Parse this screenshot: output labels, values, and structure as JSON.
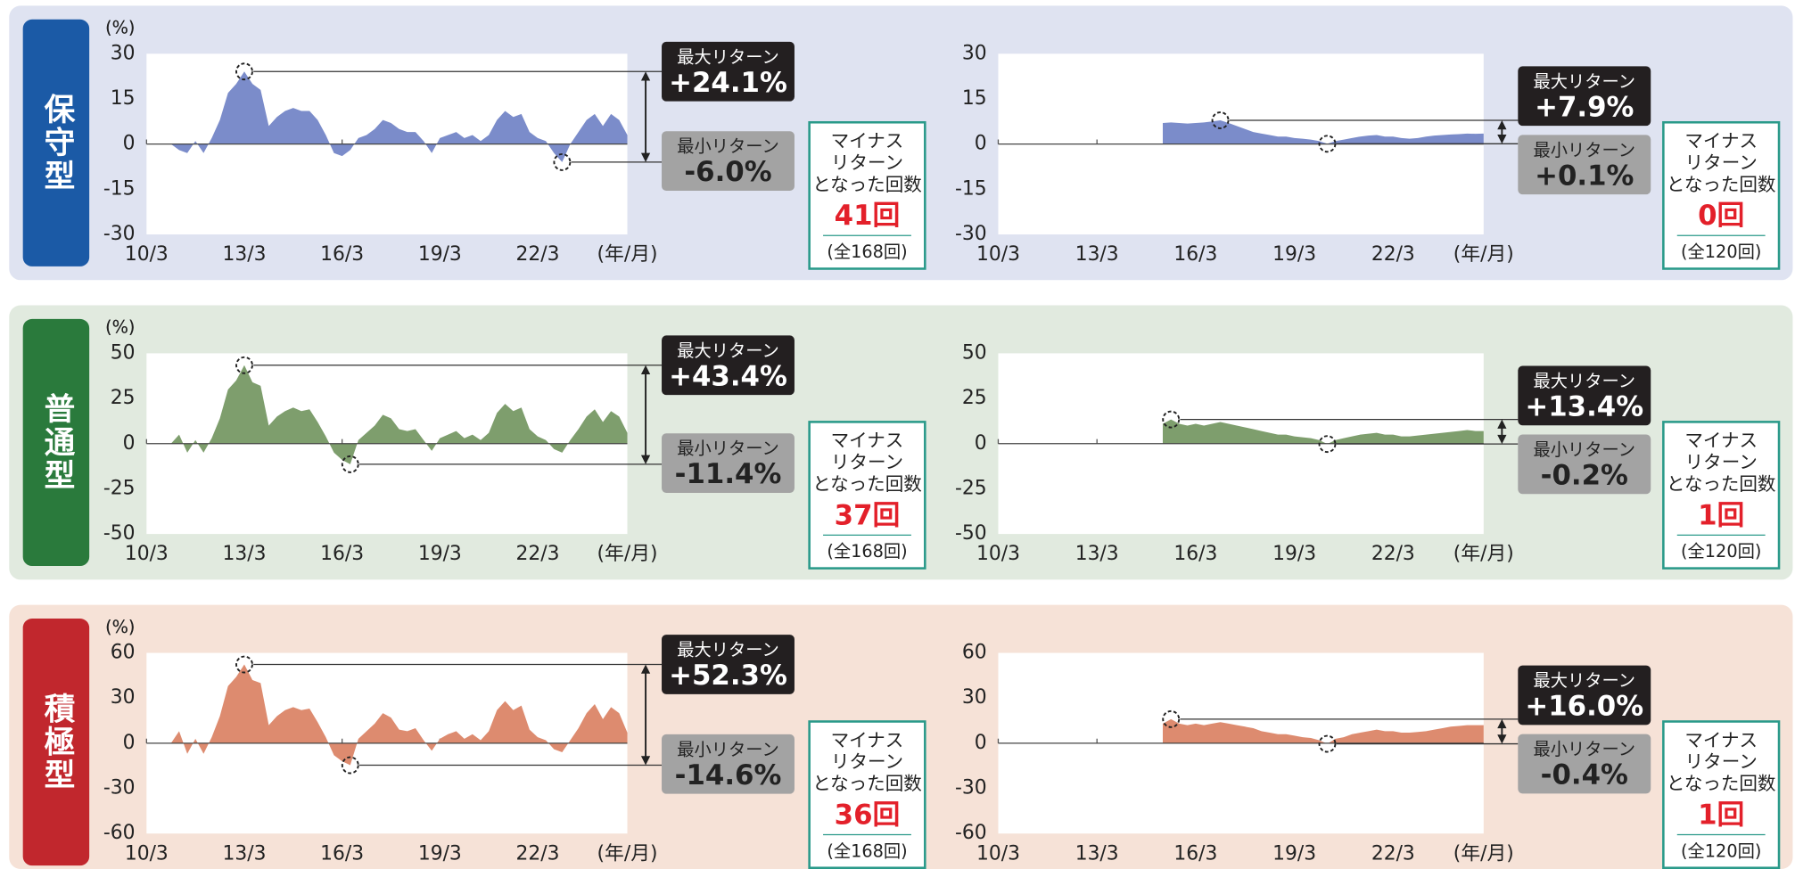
{
  "rows": [
    {
      "label": "保守型",
      "color": "#1b5aa6",
      "background": "#dfe3f1"
    },
    {
      "label": "普通型",
      "color": "#2a7a3c",
      "background": "#e1eadf"
    },
    {
      "label": "積極型",
      "color": "#c1272d",
      "background": "#f6e2d7"
    }
  ],
  "chart_data": [
    {
      "type": "area",
      "y_label": "(%)",
      "x_label": "(年/月)",
      "ylim": [
        -30,
        30
      ],
      "yticks": [
        -30,
        -15,
        0,
        15,
        30
      ],
      "categories": [
        "10/3",
        null,
        null,
        null,
        null,
        null,
        null,
        null,
        null,
        null,
        null,
        null,
        "13/3",
        null,
        null,
        null,
        null,
        null,
        null,
        null,
        null,
        null,
        null,
        null,
        "16/3",
        null,
        null,
        null,
        null,
        null,
        null,
        null,
        null,
        null,
        null,
        null,
        "19/3",
        null,
        null,
        null,
        null,
        null,
        null,
        null,
        null,
        null,
        null,
        null,
        "22/3",
        null,
        null,
        null,
        null,
        null,
        null,
        null,
        null,
        null,
        null,
        null
      ],
      "color": "#7b8cca",
      "values": [
        null,
        null,
        null,
        0,
        -2,
        -3,
        1,
        -3,
        2,
        8,
        17,
        20,
        24.1,
        20,
        18,
        6,
        9,
        11,
        12,
        11,
        11,
        8,
        3,
        -3,
        -4,
        -2,
        2,
        3,
        5,
        8,
        7,
        5,
        4,
        4,
        1,
        -3,
        2,
        3,
        4,
        2,
        3,
        1,
        3,
        8,
        11,
        9,
        10,
        4,
        2,
        1,
        -3,
        -6,
        0,
        4,
        8,
        10,
        6,
        10,
        8,
        3
      ],
      "max_title": "最大リターン",
      "max_value": 24.1,
      "max_label": "+24.1%",
      "min_title": "最小リターン",
      "min_value": -6.0,
      "min_label": "-6.0%",
      "count_title": [
        "マイナス",
        "リターン",
        "となった回数"
      ],
      "count_label": "41回",
      "total_label": "(全168回)"
    },
    {
      "type": "area",
      "y_label": "(%)",
      "x_label": "(年/月)",
      "ylim": [
        -30,
        30
      ],
      "yticks": [
        -30,
        -15,
        0,
        15,
        30
      ],
      "categories": [
        "10/3",
        null,
        null,
        null,
        null,
        null,
        null,
        null,
        null,
        null,
        null,
        null,
        "13/3",
        null,
        null,
        null,
        null,
        null,
        null,
        null,
        null,
        null,
        null,
        null,
        "16/3",
        null,
        null,
        null,
        null,
        null,
        null,
        null,
        null,
        null,
        null,
        null,
        "19/3",
        null,
        null,
        null,
        null,
        null,
        null,
        null,
        null,
        null,
        null,
        null,
        "22/3",
        null,
        null,
        null,
        null,
        null,
        null,
        null,
        null,
        null,
        null,
        null
      ],
      "color": "#7b8cca",
      "values": [
        null,
        null,
        null,
        null,
        null,
        null,
        null,
        null,
        null,
        null,
        null,
        null,
        null,
        null,
        null,
        null,
        null,
        null,
        null,
        null,
        7,
        7.2,
        7,
        6.8,
        7,
        7.2,
        7.5,
        7.9,
        7,
        6,
        5,
        4,
        3.5,
        3,
        2.5,
        2.5,
        2,
        1.8,
        1.5,
        1,
        0.1,
        1,
        1.5,
        2,
        2.5,
        2.8,
        3,
        2.5,
        2.5,
        2,
        1.8,
        2,
        2.5,
        2.8,
        3,
        3.2,
        3.3,
        3.5,
        3.4,
        3.5
      ],
      "max_title": "最大リターン",
      "max_value": 7.9,
      "max_label": "+7.9%",
      "min_title": "最小リターン",
      "min_value": 0.1,
      "min_label": "+0.1%",
      "count_title": [
        "マイナス",
        "リターン",
        "となった回数"
      ],
      "count_label": "0回",
      "total_label": "(全120回)"
    },
    {
      "type": "area",
      "y_label": "(%)",
      "x_label": "(年/月)",
      "ylim": [
        -50,
        50
      ],
      "yticks": [
        -50,
        -25,
        0,
        25,
        50
      ],
      "categories": [
        "10/3",
        null,
        null,
        null,
        null,
        null,
        null,
        null,
        null,
        null,
        null,
        null,
        "13/3",
        null,
        null,
        null,
        null,
        null,
        null,
        null,
        null,
        null,
        null,
        null,
        "16/3",
        null,
        null,
        null,
        null,
        null,
        null,
        null,
        null,
        null,
        null,
        null,
        "19/3",
        null,
        null,
        null,
        null,
        null,
        null,
        null,
        null,
        null,
        null,
        null,
        "22/3",
        null,
        null,
        null,
        null,
        null,
        null,
        null,
        null,
        null,
        null,
        null
      ],
      "color": "#7e9e6d",
      "values": [
        null,
        null,
        null,
        0,
        5,
        -5,
        2,
        -5,
        3,
        14,
        30,
        35,
        43.4,
        34,
        32,
        10,
        15,
        18,
        20,
        18,
        19,
        12,
        4,
        -5,
        -9,
        -11.4,
        2,
        6,
        10,
        16,
        14,
        8,
        7,
        8,
        2,
        -4,
        3,
        5,
        7,
        3,
        5,
        2,
        6,
        17,
        22,
        18,
        20,
        8,
        4,
        2,
        -3,
        -5,
        2,
        8,
        15,
        19,
        12,
        18,
        15,
        6
      ],
      "max_title": "最大リターン",
      "max_value": 43.4,
      "max_label": "+43.4%",
      "min_title": "最小リターン",
      "min_value": -11.4,
      "min_label": "-11.4%",
      "count_title": [
        "マイナス",
        "リターン",
        "となった回数"
      ],
      "count_label": "37回",
      "total_label": "(全168回)"
    },
    {
      "type": "area",
      "y_label": "(%)",
      "x_label": "(年/月)",
      "ylim": [
        -50,
        50
      ],
      "yticks": [
        -50,
        -25,
        0,
        25,
        50
      ],
      "categories": [
        "10/3",
        null,
        null,
        null,
        null,
        null,
        null,
        null,
        null,
        null,
        null,
        null,
        "13/3",
        null,
        null,
        null,
        null,
        null,
        null,
        null,
        null,
        null,
        null,
        null,
        "16/3",
        null,
        null,
        null,
        null,
        null,
        null,
        null,
        null,
        null,
        null,
        null,
        "19/3",
        null,
        null,
        null,
        null,
        null,
        null,
        null,
        null,
        null,
        null,
        null,
        "22/3",
        null,
        null,
        null,
        null,
        null,
        null,
        null,
        null,
        null,
        null,
        null
      ],
      "color": "#7e9e6d",
      "values": [
        null,
        null,
        null,
        null,
        null,
        null,
        null,
        null,
        null,
        null,
        null,
        null,
        null,
        null,
        null,
        null,
        null,
        null,
        null,
        null,
        11,
        13.4,
        11,
        10,
        11,
        10,
        11,
        12,
        11,
        10,
        9,
        8,
        7,
        6,
        5,
        5,
        4,
        3.5,
        3,
        2,
        -0.2,
        2,
        3,
        4,
        5,
        5.5,
        6,
        5,
        5,
        4,
        4,
        4.5,
        5,
        5.5,
        6,
        6.5,
        7,
        7.5,
        7,
        7
      ],
      "max_title": "最大リターン",
      "max_value": 13.4,
      "max_label": "+13.4%",
      "min_title": "最小リターン",
      "min_value": -0.2,
      "min_label": "-0.2%",
      "count_title": [
        "マイナス",
        "リターン",
        "となった回数"
      ],
      "count_label": "1回",
      "total_label": "(全120回)"
    },
    {
      "type": "area",
      "y_label": "(%)",
      "x_label": "(年/月)",
      "ylim": [
        -60,
        60
      ],
      "yticks": [
        -60,
        -30,
        0,
        30,
        60
      ],
      "categories": [
        "10/3",
        null,
        null,
        null,
        null,
        null,
        null,
        null,
        null,
        null,
        null,
        null,
        "13/3",
        null,
        null,
        null,
        null,
        null,
        null,
        null,
        null,
        null,
        null,
        null,
        "16/3",
        null,
        null,
        null,
        null,
        null,
        null,
        null,
        null,
        null,
        null,
        null,
        "19/3",
        null,
        null,
        null,
        null,
        null,
        null,
        null,
        null,
        null,
        null,
        null,
        "22/3",
        null,
        null,
        null,
        null,
        null,
        null,
        null,
        null,
        null,
        null,
        null
      ],
      "color": "#dd8b6f",
      "values": [
        null,
        null,
        null,
        0,
        8,
        -7,
        3,
        -7,
        4,
        18,
        38,
        44,
        52.3,
        42,
        40,
        12,
        18,
        22,
        24,
        22,
        23,
        14,
        4,
        -8,
        -12,
        -14.6,
        3,
        8,
        13,
        20,
        17,
        9,
        8,
        10,
        2,
        -5,
        3,
        6,
        8,
        3,
        6,
        2,
        8,
        22,
        28,
        22,
        25,
        9,
        4,
        2,
        -4,
        -6,
        2,
        10,
        20,
        26,
        16,
        24,
        20,
        7
      ],
      "max_title": "最大リターン",
      "max_value": 52.3,
      "max_label": "+52.3%",
      "min_title": "最小リターン",
      "min_value": -14.6,
      "min_label": "-14.6%",
      "count_title": [
        "マイナス",
        "リターン",
        "となった回数"
      ],
      "count_label": "36回",
      "total_label": "(全168回)"
    },
    {
      "type": "area",
      "y_label": "(%)",
      "x_label": "(年/月)",
      "ylim": [
        -60,
        60
      ],
      "yticks": [
        -60,
        -30,
        0,
        30,
        60
      ],
      "categories": [
        "10/3",
        null,
        null,
        null,
        null,
        null,
        null,
        null,
        null,
        null,
        null,
        null,
        "13/3",
        null,
        null,
        null,
        null,
        null,
        null,
        null,
        null,
        null,
        null,
        null,
        "16/3",
        null,
        null,
        null,
        null,
        null,
        null,
        null,
        null,
        null,
        null,
        null,
        "19/3",
        null,
        null,
        null,
        null,
        null,
        null,
        null,
        null,
        null,
        null,
        null,
        "22/3",
        null,
        null,
        null,
        null,
        null,
        null,
        null,
        null,
        null,
        null,
        null
      ],
      "color": "#dd8b6f",
      "values": [
        null,
        null,
        null,
        null,
        null,
        null,
        null,
        null,
        null,
        null,
        null,
        null,
        null,
        null,
        null,
        null,
        null,
        null,
        null,
        null,
        13,
        16.0,
        13,
        12,
        13,
        12,
        13,
        14,
        13,
        12,
        11,
        10,
        8,
        7,
        6,
        6,
        5,
        4,
        3.5,
        2,
        -0.4,
        3,
        4,
        6,
        7,
        8,
        9,
        8,
        8,
        7,
        7,
        7.5,
        8,
        9,
        10,
        11,
        11.5,
        12,
        12,
        12
      ],
      "max_title": "最大リターン",
      "max_value": 16.0,
      "max_label": "+16.0%",
      "min_title": "最小リターン",
      "min_value": -0.4,
      "min_label": "-0.4%",
      "count_title": [
        "マイナス",
        "リターン",
        "となった回数"
      ],
      "count_label": "1回",
      "total_label": "(全120回)"
    }
  ]
}
